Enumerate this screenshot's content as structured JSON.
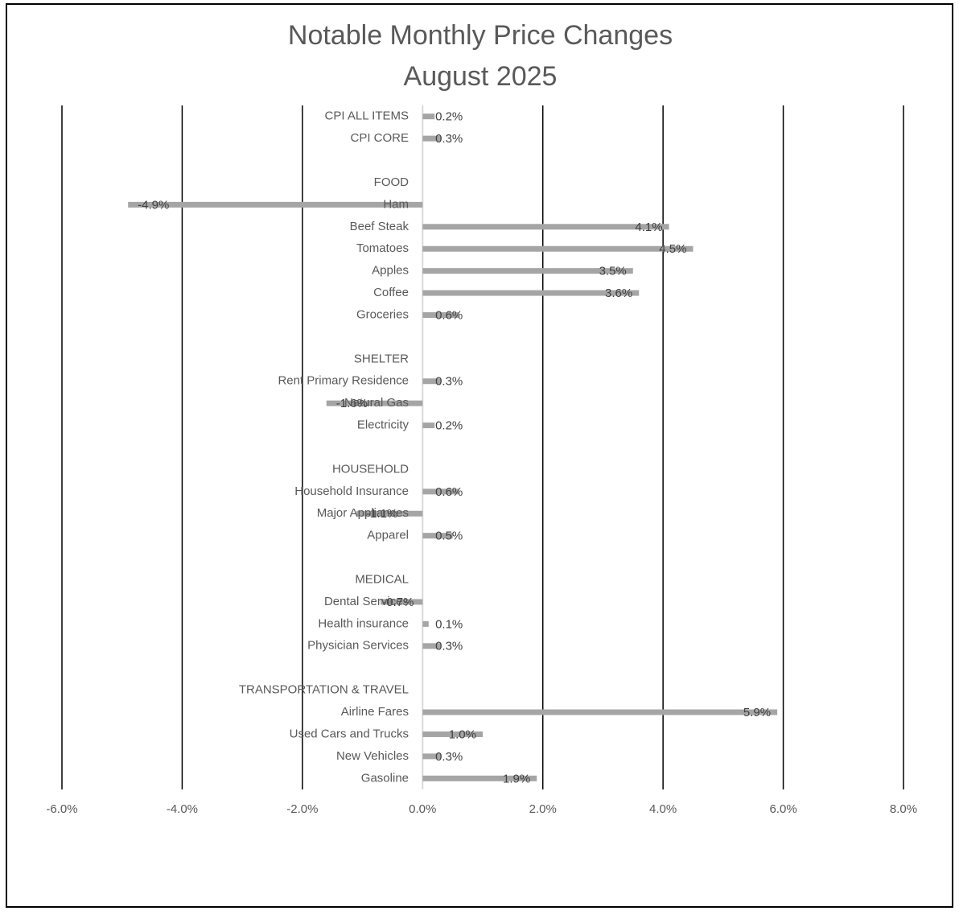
{
  "chart_data": {
    "type": "bar",
    "orientation": "horizontal",
    "title": "Notable Monthly Price Changes",
    "subtitle": "August 2025",
    "categories": [
      "CPI ALL ITEMS",
      "CPI CORE",
      null,
      "FOOD",
      "Ham",
      "Beef Steak",
      "Tomatoes",
      "Apples",
      "Coffee",
      "Groceries",
      null,
      "SHELTER",
      "Rent Primary Residence",
      "Natural Gas",
      "Electricity",
      null,
      "HOUSEHOLD",
      "Household Insurance",
      "Major Appliances",
      "Apparel",
      null,
      "MEDICAL",
      "Dental Services",
      "Health insurance",
      "Physician Services",
      null,
      "TRANSPORTATION & TRAVEL",
      "Airline Fares",
      "Used Cars and Trucks",
      "New Vehicles",
      "Gasoline"
    ],
    "values": [
      0.2,
      0.3,
      null,
      null,
      -4.9,
      4.1,
      4.5,
      3.5,
      3.6,
      0.6,
      null,
      null,
      0.3,
      -1.6,
      0.2,
      null,
      null,
      0.6,
      -1.1,
      0.5,
      null,
      null,
      -0.7,
      0.1,
      0.3,
      null,
      null,
      5.9,
      1.0,
      0.3,
      1.9
    ],
    "value_labels": [
      "0.2%",
      "0.3%",
      null,
      null,
      "-4.9%",
      "4.1%",
      "4.5%",
      "3.5%",
      "3.6%",
      "0.6%",
      null,
      null,
      "0.3%",
      "-1.6%",
      "0.2%",
      null,
      null,
      "0.6%",
      "-1.1%",
      "0.5%",
      null,
      null,
      "-0.7%",
      "0.1%",
      "0.3%",
      null,
      null,
      "5.9%",
      "1.0%",
      "0.3%",
      "1.9%"
    ],
    "color": "#a5a5a5",
    "xlim": [
      -6,
      8
    ],
    "xticks": [
      {
        "value": -6,
        "label": "-6.0%"
      },
      {
        "value": -4,
        "label": "-4.0%"
      },
      {
        "value": -2,
        "label": "-2.0%"
      },
      {
        "value": 0,
        "label": "0.0%"
      },
      {
        "value": 2,
        "label": "2.0%"
      },
      {
        "value": 4,
        "label": "4.0%"
      },
      {
        "value": 6,
        "label": "6.0%"
      },
      {
        "value": 8,
        "label": "8.0%"
      }
    ],
    "grid": true
  }
}
